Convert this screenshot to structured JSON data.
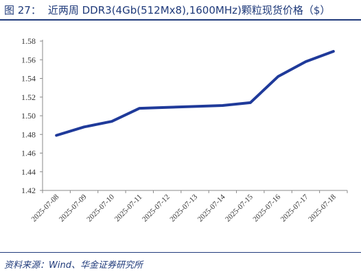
{
  "header": {
    "figure_label": "图 27：",
    "title": "近两周 DDR3(4Gb(512Mx8),1600MHz)颗粒现货价格（$）"
  },
  "chart_data": {
    "type": "line",
    "title": "近两周 DDR3(4Gb(512Mx8),1600MHz)颗粒现货价格（$）",
    "xlabel": "",
    "ylabel": "",
    "categories": [
      "2025-07-08",
      "2025-07-09",
      "2025-07-10",
      "2025-07-11",
      "2025-07-12",
      "2025-07-13",
      "2025-07-14",
      "2025-07-15",
      "2025-07-16",
      "2025-07-17",
      "2025-07-18"
    ],
    "series": [
      {
        "values": [
          1.479,
          1.488,
          1.494,
          1.508,
          1.509,
          1.51,
          1.511,
          1.514,
          1.542,
          1.558,
          1.569
        ],
        "color": "#1f3a9a"
      }
    ],
    "ylim": [
      1.42,
      1.58
    ],
    "yticks": [
      "1.42",
      "1.44",
      "1.46",
      "1.48",
      "1.50",
      "1.52",
      "1.54",
      "1.56",
      "1.58"
    ],
    "grid": false,
    "legend": "none"
  },
  "footer": {
    "source": "资料来源：Wind、华金证券研究所"
  }
}
